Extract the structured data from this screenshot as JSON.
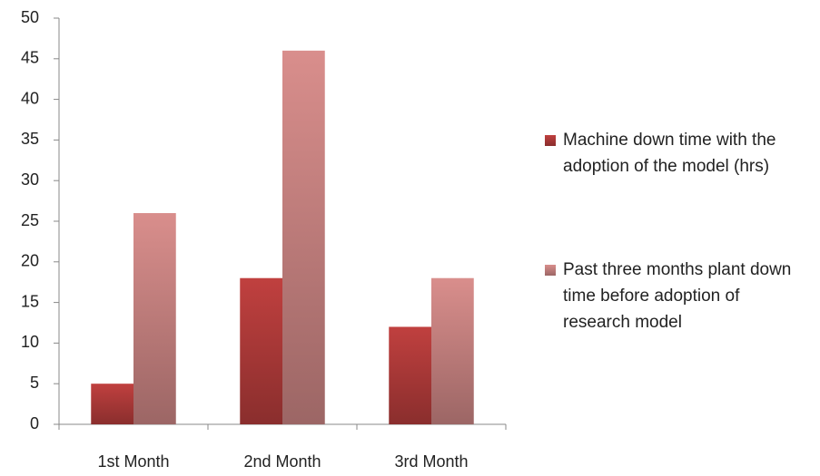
{
  "chart_data": {
    "type": "bar",
    "categories": [
      "1st Month",
      "2nd Month",
      "3rd Month"
    ],
    "series": [
      {
        "name": "Machine down time with the adoption of the model (hrs)",
        "color": "#c0403f",
        "values": [
          5,
          18,
          12
        ]
      },
      {
        "name": "Past three months plant down time before adoption of research model",
        "color": "#d98e8c",
        "values": [
          26,
          46,
          18
        ]
      }
    ],
    "ylim": [
      0,
      50
    ],
    "yticks": [
      0,
      5,
      10,
      15,
      20,
      25,
      30,
      35,
      40,
      45,
      50
    ],
    "grid": false,
    "legend": "right"
  }
}
